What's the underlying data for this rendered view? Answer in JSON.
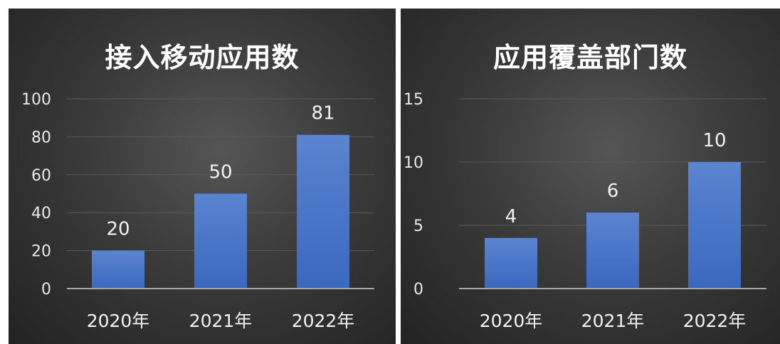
{
  "chart_data": [
    {
      "type": "bar",
      "title": "接入移动应用数",
      "categories": [
        "2020年",
        "2021年",
        "2022年"
      ],
      "values": [
        20,
        50,
        81
      ],
      "ylim": [
        0,
        100
      ],
      "yticks": [
        0,
        20,
        40,
        60,
        80,
        100
      ],
      "grid": true,
      "bar_color": "#4472c4"
    },
    {
      "type": "bar",
      "title": "应用覆盖部门数",
      "categories": [
        "2020年",
        "2021年",
        "2022年"
      ],
      "values": [
        4,
        6,
        10
      ],
      "ylim": [
        0,
        15
      ],
      "yticks": [
        0,
        5,
        10,
        15
      ],
      "grid": true,
      "bar_color": "#4472c4"
    }
  ]
}
